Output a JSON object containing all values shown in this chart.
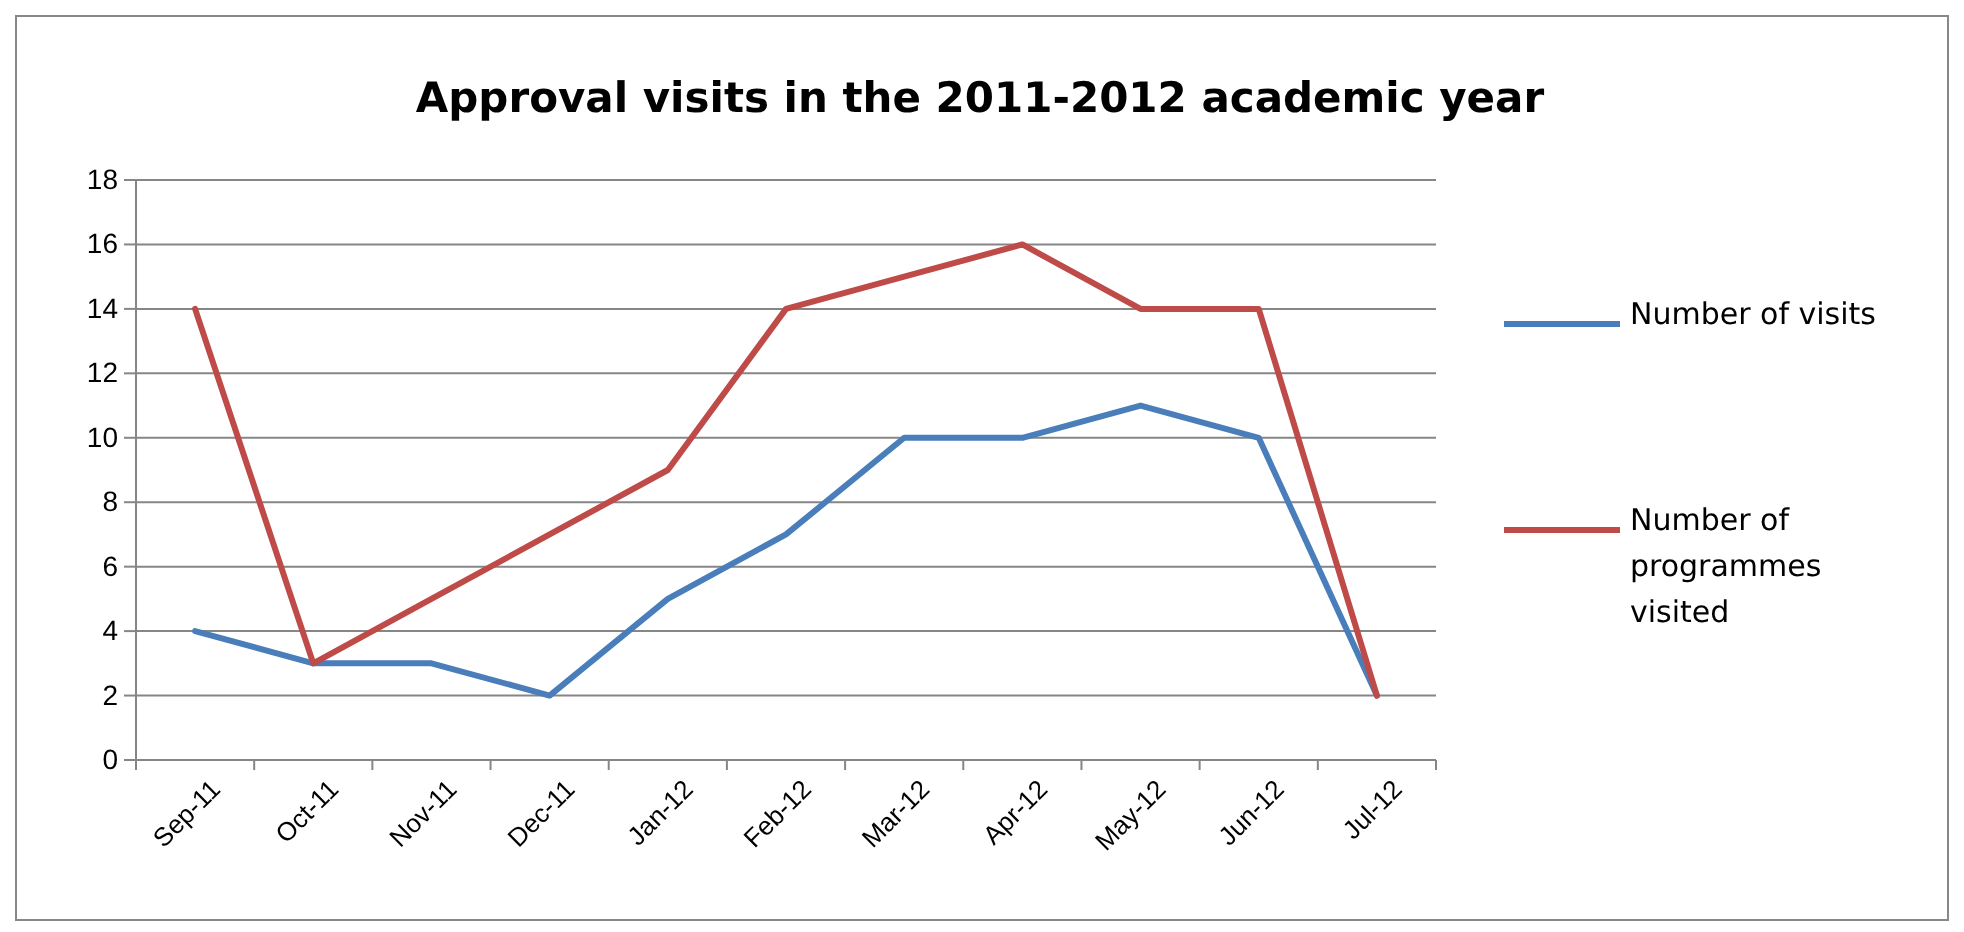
{
  "chart_data": {
    "type": "line",
    "title": "Approval visits in the 2011-2012 academic year",
    "categories": [
      "Sep-11",
      "Oct-11",
      "Nov-11",
      "Dec-11",
      "Jan-12",
      "Feb-12",
      "Mar-12",
      "Apr-12",
      "May-12",
      "Jun-12",
      "Jul-12"
    ],
    "series": [
      {
        "name": "Number of visits",
        "color": "#4a7ebb",
        "values": [
          4,
          3,
          3,
          2,
          5,
          7,
          10,
          10,
          11,
          10,
          2
        ]
      },
      {
        "name": "Number of programmes visited",
        "color": "#be4b48",
        "values": [
          14,
          3,
          5,
          7,
          9,
          14,
          15,
          16,
          14,
          14,
          2
        ]
      }
    ],
    "ylim": [
      0,
      18
    ],
    "yticks": [
      0,
      2,
      4,
      6,
      8,
      10,
      12,
      14,
      16,
      18
    ],
    "grid": "y",
    "legend": "right",
    "marker": "none",
    "line_style": "solid"
  }
}
